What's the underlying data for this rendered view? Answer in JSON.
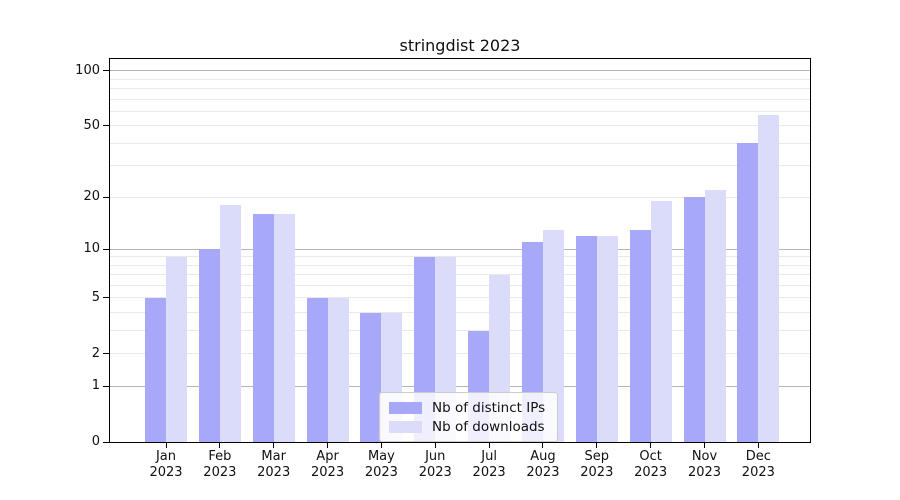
{
  "chart_data": {
    "type": "bar",
    "title": "stringdist 2023",
    "categories": [
      "Jan 2023",
      "Feb 2023",
      "Mar 2023",
      "Apr 2023",
      "May 2023",
      "Jun 2023",
      "Jul 2023",
      "Aug 2023",
      "Sep 2023",
      "Oct 2023",
      "Nov 2023",
      "Dec 2023"
    ],
    "months": [
      "Jan",
      "Feb",
      "Mar",
      "Apr",
      "May",
      "Jun",
      "Jul",
      "Aug",
      "Sep",
      "Oct",
      "Nov",
      "Dec"
    ],
    "year": "2023",
    "series": [
      {
        "name": "Nb of distinct IPs",
        "color": "#a8a8f8",
        "values": [
          5,
          10,
          16,
          5,
          4,
          9,
          3,
          11,
          12,
          13,
          20,
          40
        ]
      },
      {
        "name": "Nb of downloads",
        "color": "#dbdbfa",
        "values": [
          9,
          18,
          16,
          5,
          4,
          9,
          7,
          13,
          12,
          19,
          22,
          57
        ]
      }
    ],
    "xlabel": "",
    "ylabel": "",
    "yscale": "log1p",
    "ylim": [
      0,
      116
    ],
    "y_tick_labels": [
      0,
      1,
      2,
      5,
      10,
      20,
      50,
      100
    ],
    "gridlines": {
      "orientation": "horizontal",
      "major": [
        1,
        10,
        100
      ],
      "minor": [
        2,
        3,
        4,
        5,
        6,
        7,
        8,
        9,
        20,
        30,
        40,
        50,
        60,
        70,
        80,
        90
      ]
    },
    "legend": {
      "position": "bottom-center",
      "entries": [
        "Nb of distinct IPs",
        "Nb of downloads"
      ]
    },
    "colors": {
      "axis": "#000000",
      "text": "#111111",
      "major_grid": "#b3b3b3",
      "minor_grid": "#e9e9e9",
      "background": "#ffffff",
      "legend_border": "#cccccc"
    }
  }
}
